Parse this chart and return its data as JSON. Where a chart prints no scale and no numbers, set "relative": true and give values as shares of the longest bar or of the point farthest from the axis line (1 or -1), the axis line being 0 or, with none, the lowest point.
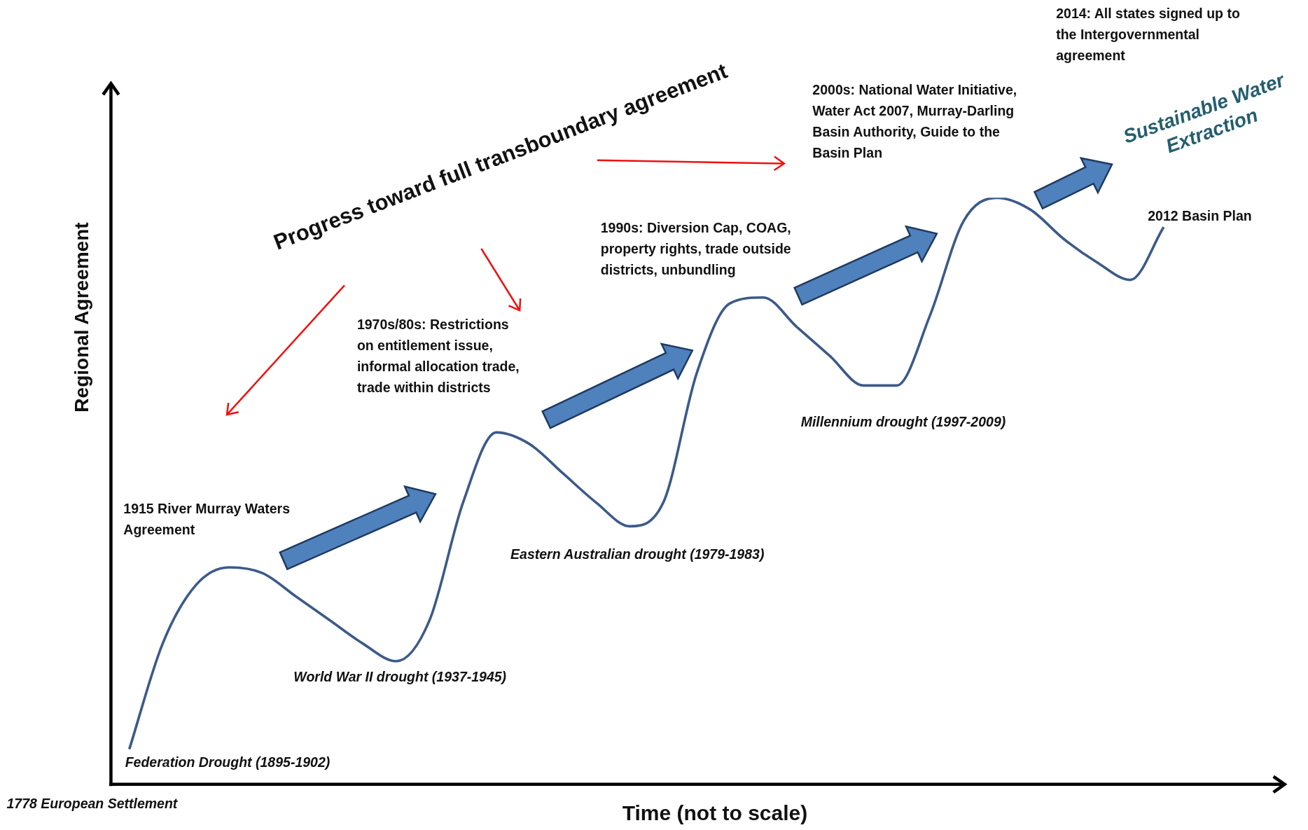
{
  "chart_data": {
    "type": "line",
    "relative": true,
    "xlabel": "Time (not to scale)",
    "ylabel": "Regional Agreement",
    "categories": [
      null,
      null,
      null,
      null,
      null,
      null,
      null,
      null,
      null,
      null,
      null,
      null,
      null,
      null,
      null,
      null,
      null,
      null,
      null,
      null,
      null,
      null,
      null,
      null,
      null,
      null,
      null,
      null,
      null,
      null,
      null,
      null,
      null,
      null,
      null
    ],
    "series": [
      {
        "color": "#3c5a8a",
        "values": [
          0.06,
          0.24,
          0.34,
          0.37,
          0.36,
          0.32,
          0.28,
          0.24,
          0.21,
          0.28,
          0.48,
          0.6,
          0.58,
          0.53,
          0.48,
          0.44,
          0.48,
          0.7,
          0.82,
          0.83,
          0.78,
          0.73,
          0.68,
          0.68,
          0.8,
          0.96,
          1,
          0.98,
          0.93,
          0.89,
          0.86,
          0.95,
          null,
          null,
          null
        ]
      }
    ],
    "marker": "none",
    "line_style": "solid",
    "grid": false,
    "legend": false,
    "annotations": [
      "Progress toward full transboundary agreement",
      "1915 River Murray Waters Agreement",
      "1970s/80s: Restrictions on entitlement issue, informal allocation trade, trade within districts",
      "1990s: Diversion Cap, COAG, property rights, trade outside districts, unbundling",
      "2000s: National Water Initiative, Water Act 2007, Murray-Darling Basin Authority, Guide to the Basin Plan",
      "2014: All states signed up to the Intergovernmental agreement",
      "Sustainable Water Extraction",
      "2012 Basin Plan",
      "Federation Drought (1895-1902)",
      "World War II drought (1937-1945)",
      "Eastern Australian drought (1979-1983)",
      "Millennium drought (1997-2009)",
      "1778 European Settlement"
    ]
  }
}
